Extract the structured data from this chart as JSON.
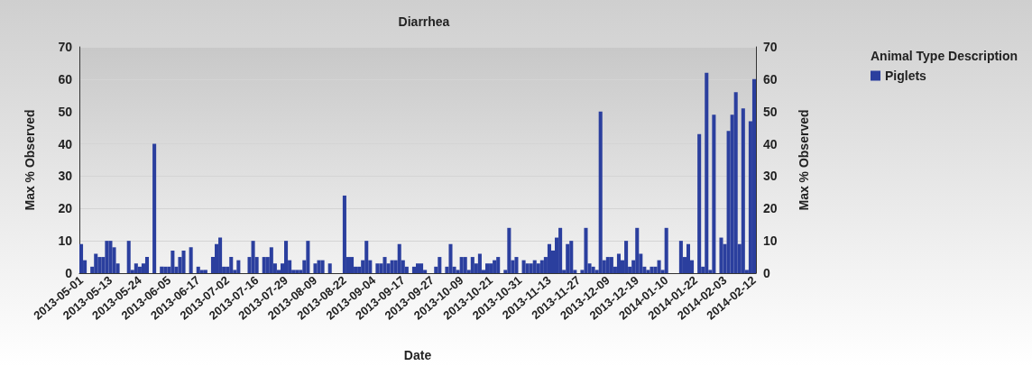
{
  "chart_data": {
    "type": "bar",
    "title": "Diarrhea",
    "xlabel": "Date",
    "ylabel": "Max % Observed",
    "y2label": "Max % Observed",
    "legend_title": "Animal Type Description",
    "categories": [
      "2013-05-01",
      null,
      null,
      null,
      null,
      null,
      null,
      null,
      "2013-05-13",
      null,
      null,
      null,
      null,
      null,
      null,
      null,
      "2013-05-24",
      null,
      null,
      null,
      null,
      null,
      null,
      null,
      "2013-06-05",
      null,
      null,
      null,
      null,
      null,
      null,
      null,
      "2013-06-17",
      null,
      null,
      null,
      null,
      null,
      null,
      null,
      "2013-07-02",
      null,
      null,
      null,
      null,
      null,
      null,
      null,
      "2013-07-16",
      null,
      null,
      null,
      null,
      null,
      null,
      null,
      "2013-07-29",
      null,
      null,
      null,
      null,
      null,
      null,
      null,
      "2013-08-09",
      null,
      null,
      null,
      null,
      null,
      null,
      null,
      "2013-08-22",
      null,
      null,
      null,
      null,
      null,
      null,
      null,
      "2013-09-04",
      null,
      null,
      null,
      null,
      null,
      null,
      null,
      "2013-09-17",
      null,
      null,
      null,
      null,
      null,
      null,
      null,
      "2013-09-27",
      null,
      null,
      null,
      null,
      null,
      null,
      null,
      "2013-10-09",
      null,
      null,
      null,
      null,
      null,
      null,
      null,
      "2013-10-21",
      null,
      null,
      null,
      null,
      null,
      null,
      null,
      "2013-10-31",
      null,
      null,
      null,
      null,
      null,
      null,
      null,
      "2013-11-13",
      null,
      null,
      null,
      null,
      null,
      null,
      null,
      "2013-11-27",
      null,
      null,
      null,
      null,
      null,
      null,
      null,
      "2013-12-09",
      null,
      null,
      null,
      null,
      null,
      null,
      null,
      "2013-12-19",
      null,
      null,
      null,
      null,
      null,
      null,
      null,
      "2014-01-10",
      null,
      null,
      null,
      null,
      null,
      null,
      null,
      "2014-01-22",
      null,
      null,
      null,
      null,
      null,
      null,
      null,
      "2014-02-03",
      null,
      null,
      null,
      null,
      null,
      null,
      null,
      "2014-02-12"
    ],
    "series": [
      {
        "name": "Piglets",
        "color": "#2b3f9e",
        "values": [
          9,
          4,
          null,
          2,
          6,
          5,
          5,
          10,
          10,
          8,
          3,
          null,
          null,
          10,
          1,
          3,
          2,
          3,
          5,
          null,
          40,
          null,
          2,
          2,
          2,
          7,
          2,
          5,
          7,
          null,
          8,
          null,
          2,
          1,
          1,
          null,
          5,
          9,
          11,
          2,
          2,
          5,
          1,
          4,
          null,
          null,
          5,
          10,
          5,
          null,
          5,
          5,
          8,
          3,
          1,
          3,
          10,
          4,
          1,
          1,
          1,
          4,
          10,
          null,
          3,
          4,
          4,
          null,
          3,
          null,
          null,
          null,
          24,
          5,
          5,
          2,
          2,
          4,
          10,
          4,
          null,
          3,
          3,
          5,
          3,
          4,
          4,
          9,
          4,
          2,
          null,
          2,
          3,
          3,
          1,
          null,
          null,
          2,
          5,
          null,
          2,
          9,
          2,
          1,
          5,
          5,
          1,
          5,
          3,
          6,
          1,
          3,
          3,
          4,
          5,
          null,
          1,
          14,
          4,
          5,
          null,
          4,
          3,
          3,
          4,
          3,
          4,
          5,
          9,
          7,
          11,
          14,
          1,
          9,
          10,
          1,
          null,
          1,
          14,
          3,
          2,
          1,
          50,
          4,
          5,
          5,
          2,
          6,
          4,
          10,
          2,
          4,
          14,
          6,
          2,
          1,
          2,
          2,
          4,
          1,
          14,
          null,
          null,
          null,
          10,
          5,
          9,
          4,
          null,
          43,
          2,
          62,
          1,
          49,
          null,
          11,
          9,
          44,
          49,
          56,
          9,
          51,
          1,
          47,
          60
        ]
      }
    ],
    "ylim": [
      0,
      70
    ],
    "yticks": [
      0,
      10,
      20,
      30,
      40,
      50,
      60,
      70
    ],
    "y2lim": [
      0,
      70
    ],
    "y2ticks": [
      0,
      10,
      20,
      30,
      40,
      50,
      60,
      70
    ],
    "grid": "y",
    "legend": "right"
  }
}
